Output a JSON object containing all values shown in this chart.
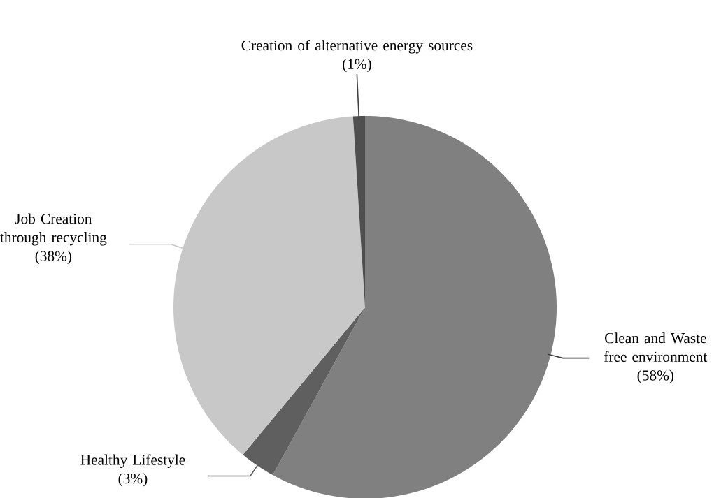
{
  "chart_data": {
    "type": "pie",
    "categories": [
      "Clean and Waste free environment",
      "Healthy Lifestyle",
      "Job Creation through recycling",
      "Creation of alternative energy sources"
    ],
    "values": [
      58,
      3,
      38,
      1
    ],
    "value_labels": [
      "(58%)",
      "(3%)",
      "(38%)",
      "(1%)"
    ],
    "colors": [
      "#808080",
      "#5f5f5f",
      "#c8c8c8",
      "#4f4f4f"
    ]
  }
}
